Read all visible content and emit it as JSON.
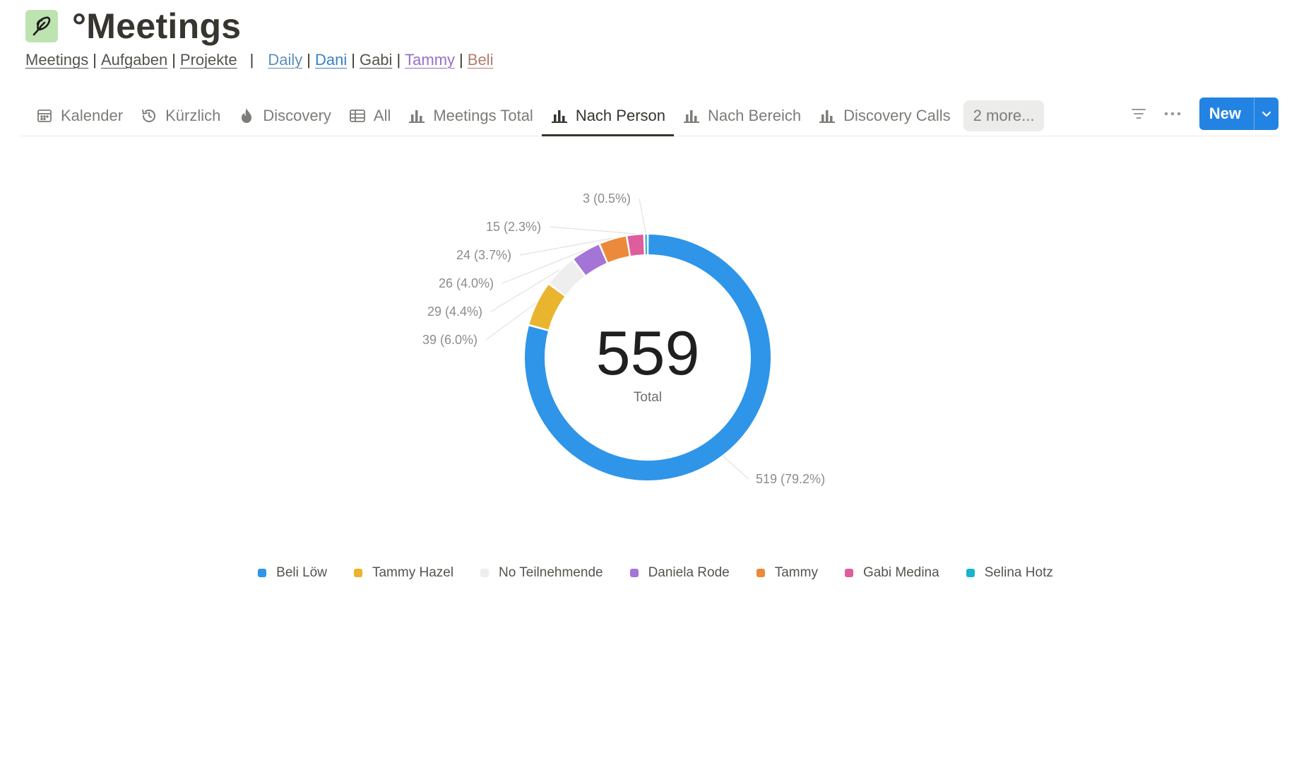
{
  "page": {
    "title": "°Meetings",
    "icon": "feather-icon",
    "icon_bg": "#bde3b0"
  },
  "links": {
    "primary": [
      {
        "label": "Meetings",
        "color": "#55534e"
      },
      {
        "label": "Aufgaben",
        "color": "#55534e"
      },
      {
        "label": "Projekte",
        "color": "#55534e"
      }
    ],
    "people": [
      {
        "label": "Daily",
        "color": "#5b8fb9"
      },
      {
        "label": "Dani",
        "color": "#3a82c4"
      },
      {
        "label": "Gabi",
        "color": "#55534e"
      },
      {
        "label": "Tammy",
        "color": "#9a6fc0"
      },
      {
        "label": "Beli",
        "color": "#b07d6c"
      }
    ]
  },
  "tabs": [
    {
      "label": "Kalender",
      "icon": "calendar-icon",
      "active": false
    },
    {
      "label": "Kürzlich",
      "icon": "history-icon",
      "active": false
    },
    {
      "label": "Discovery",
      "icon": "flame-icon",
      "active": false
    },
    {
      "label": "All",
      "icon": "table-icon",
      "active": false
    },
    {
      "label": "Meetings Total",
      "icon": "bar-chart-icon",
      "active": false
    },
    {
      "label": "Nach Person",
      "icon": "bar-chart-icon",
      "active": true
    },
    {
      "label": "Nach Bereich",
      "icon": "bar-chart-icon",
      "active": false
    },
    {
      "label": "Discovery Calls",
      "icon": "bar-chart-icon",
      "active": false
    }
  ],
  "more_tabs_label": "2 more...",
  "toolbar": {
    "filter_icon": "filter-icon",
    "more_icon": "ellipsis-icon",
    "new_label": "New",
    "new_caret_icon": "chevron-down-icon",
    "accent": "#2383e2"
  },
  "chart_data": {
    "type": "pie",
    "donut": true,
    "total_value": "559",
    "total_label": "Total",
    "legend_placement": "bottom",
    "series": [
      {
        "name": "Beli Löw",
        "value": 519,
        "label": "519 (79.2%)",
        "color": "#2e95e8"
      },
      {
        "name": "Tammy Hazel",
        "value": 39,
        "label": "39 (6.0%)",
        "color": "#e9b52f"
      },
      {
        "name": "No Teilnehmende",
        "value": 29,
        "label": "29 (4.4%)",
        "color": "#eeeeee"
      },
      {
        "name": "Daniela Rode",
        "value": 26,
        "label": "26 (4.0%)",
        "color": "#a474d7"
      },
      {
        "name": "Tammy",
        "value": 24,
        "label": "24 (3.7%)",
        "color": "#ec8a3c"
      },
      {
        "name": "Gabi Medina",
        "value": 15,
        "label": "15 (2.3%)",
        "color": "#e05d9c"
      },
      {
        "name": "Selina Hotz",
        "value": 3,
        "label": "3 (0.5%)",
        "color": "#19b3cc"
      }
    ]
  }
}
